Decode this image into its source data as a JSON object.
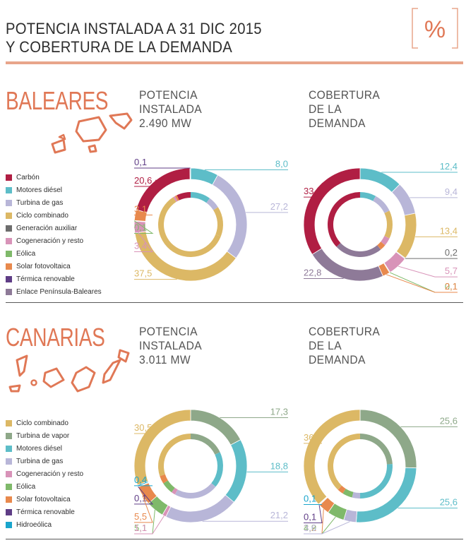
{
  "header": {
    "title_line1": "POTENCIA INSTALADA A 31 DIC 2015",
    "title_line2": "Y COBERTURA DE LA DEMANDA",
    "percent_symbol": "%"
  },
  "colors": {
    "accent": "#e07856",
    "rule": "#e8a58b"
  },
  "baleares": {
    "name": "BALEARES",
    "potencia_label": [
      "POTENCIA",
      "INSTALADA",
      "2.490 MW"
    ],
    "cobertura_label": [
      "COBERTURA",
      "DE LA",
      "DEMANDA"
    ],
    "legend": [
      {
        "label": "Carbón",
        "color": "#b01e43"
      },
      {
        "label": "Motores diésel",
        "color": "#5dbdc8"
      },
      {
        "label": "Turbina de gas",
        "color": "#b8b6d8"
      },
      {
        "label": "Ciclo combinado",
        "color": "#dcb865"
      },
      {
        "label": "Generación auxiliar",
        "color": "#6d6d6d"
      },
      {
        "label": "Cogeneración y resto",
        "color": "#d893b8"
      },
      {
        "label": "Eólica",
        "color": "#7fb96a"
      },
      {
        "label": "Solar fotovoltaica",
        "color": "#e8894d"
      },
      {
        "label": "Térmica renovable",
        "color": "#5f3d86"
      },
      {
        "label": "Enlace Península-Baleares",
        "color": "#8e7a98"
      }
    ]
  },
  "canarias": {
    "name": "CANARIAS",
    "potencia_label": [
      "POTENCIA",
      "INSTALADA",
      "3.011 MW"
    ],
    "cobertura_label": [
      "COBERTURA",
      "DE LA",
      "DEMANDA"
    ],
    "legend": [
      {
        "label": "Ciclo combinado",
        "color": "#dcb865"
      },
      {
        "label": "Turbina de vapor",
        "color": "#8ea889"
      },
      {
        "label": "Motores diésel",
        "color": "#5dbdc8"
      },
      {
        "label": "Turbina de gas",
        "color": "#b8b6d8"
      },
      {
        "label": "Cogeneración y resto",
        "color": "#d893b8"
      },
      {
        "label": "Eólica",
        "color": "#7fb96a"
      },
      {
        "label": "Solar fotovoltaica",
        "color": "#e8894d"
      },
      {
        "label": "Térmica renovable",
        "color": "#5f3d86"
      },
      {
        "label": "Hidroeólica",
        "color": "#1aa5cc"
      }
    ]
  },
  "chart_data": [
    {
      "type": "pie",
      "title": "POTENCIA INSTALADA 2.490 MW",
      "region": "BALEARES",
      "categories": [
        "Carbón",
        "Motores diésel",
        "Turbina de gas",
        "Ciclo combinado",
        "Térmica renovable",
        "Solar fotovoltaica",
        "Eólica",
        "Cogeneración y resto"
      ],
      "values": [
        20.6,
        8.0,
        27.2,
        37.5,
        0.1,
        3.1,
        0.1,
        3.4
      ],
      "labels": [
        "20,6",
        "8,0",
        "27,2",
        "37,5",
        "0,1",
        "3,1",
        "0,1",
        "3,4"
      ],
      "colors": [
        "#b01e43",
        "#5dbdc8",
        "#b8b6d8",
        "#dcb865",
        "#5f3d86",
        "#e8894d",
        "#7fb96a",
        "#d893b8"
      ],
      "order": [
        1,
        2,
        3,
        7,
        6,
        5,
        0,
        4
      ],
      "inner_values": [
        10.0,
        6.0,
        15.0,
        60.0,
        1.0,
        1.0,
        7.0
      ],
      "inner_colors": [
        "#5dbdc8",
        "#b8b6d8",
        "#dcb865",
        "#dcb865",
        "#d893b8",
        "#e8894d",
        "#b01e43"
      ]
    },
    {
      "type": "pie",
      "title": "COBERTURA DE LA DEMANDA",
      "region": "BALEARES",
      "categories": [
        "Carbón",
        "Motores diésel",
        "Turbina de gas",
        "Ciclo combinado",
        "Generación auxiliar",
        "Cogeneración y resto",
        "Eólica",
        "Solar fotovoltaica",
        "Enlace Península-Baleares"
      ],
      "values": [
        33.9,
        12.4,
        9.4,
        13.4,
        0.2,
        5.7,
        0.1,
        2.1,
        22.8
      ],
      "labels": [
        "33,9",
        "12,4",
        "9,4",
        "13,4",
        "0,2",
        "5,7",
        "0,1",
        "2,1",
        "22,8"
      ],
      "colors": [
        "#b01e43",
        "#5dbdc8",
        "#b8b6d8",
        "#dcb865",
        "#6d6d6d",
        "#d893b8",
        "#7fb96a",
        "#e8894d",
        "#8e7a98"
      ],
      "order": [
        1,
        2,
        3,
        4,
        5,
        6,
        7,
        8,
        0
      ],
      "inner_values": [
        8.0,
        10.0,
        14.0,
        4.0,
        3.0,
        24.0,
        37.0
      ],
      "inner_colors": [
        "#5dbdc8",
        "#b8b6d8",
        "#dcb865",
        "#d893b8",
        "#e8894d",
        "#8e7a98",
        "#b01e43"
      ]
    },
    {
      "type": "pie",
      "title": "POTENCIA INSTALADA 3.011 MW",
      "region": "CANARIAS",
      "categories": [
        "Turbina de vapor",
        "Motores diésel",
        "Turbina de gas",
        "Cogeneración y resto",
        "Eólica",
        "Solar fotovoltaica",
        "Térmica renovable",
        "Hidroeólica",
        "Ciclo combinado"
      ],
      "values": [
        17.3,
        18.8,
        21.2,
        1.1,
        5.1,
        5.5,
        0.1,
        0.4,
        30.5
      ],
      "labels": [
        "17,3",
        "18,8",
        "21,2",
        "1,1",
        "5,1",
        "5,5",
        "0,1",
        "0,4",
        "30,5"
      ],
      "colors": [
        "#8ea889",
        "#5dbdc8",
        "#b8b6d8",
        "#d893b8",
        "#7fb96a",
        "#e8894d",
        "#5f3d86",
        "#1aa5cc",
        "#dcb865"
      ],
      "order": [
        0,
        1,
        2,
        3,
        4,
        5,
        6,
        7,
        8
      ],
      "inner_values": [
        18.0,
        18.0,
        22.0,
        2.0,
        6.0,
        4.0,
        30.0
      ],
      "inner_colors": [
        "#8ea889",
        "#5dbdc8",
        "#b8b6d8",
        "#d893b8",
        "#7fb96a",
        "#e8894d",
        "#dcb865"
      ]
    },
    {
      "type": "pie",
      "title": "COBERTURA DE LA DEMANDA",
      "region": "CANARIAS",
      "categories": [
        "Turbina de vapor",
        "Motores diésel",
        "Turbina de gas",
        "Eólica",
        "Solar fotovoltaica",
        "Térmica renovable",
        "Hidroeólica",
        "Ciclo combinado"
      ],
      "values": [
        25.6,
        25.6,
        3.6,
        4.9,
        3.2,
        0.1,
        0.1,
        36.9
      ],
      "labels": [
        "25,6",
        "25,6",
        "3,6",
        "4,9",
        "3,2",
        "0,1",
        "0,1",
        "36,9"
      ],
      "colors": [
        "#8ea889",
        "#5dbdc8",
        "#b8b6d8",
        "#7fb96a",
        "#e8894d",
        "#5f3d86",
        "#1aa5cc",
        "#dcb865"
      ],
      "order": [
        0,
        1,
        2,
        3,
        4,
        5,
        6,
        7
      ],
      "inner_values": [
        24.0,
        26.0,
        4.0,
        5.0,
        3.0,
        38.0
      ],
      "inner_colors": [
        "#8ea889",
        "#5dbdc8",
        "#b8b6d8",
        "#7fb96a",
        "#e8894d",
        "#dcb865"
      ]
    }
  ]
}
